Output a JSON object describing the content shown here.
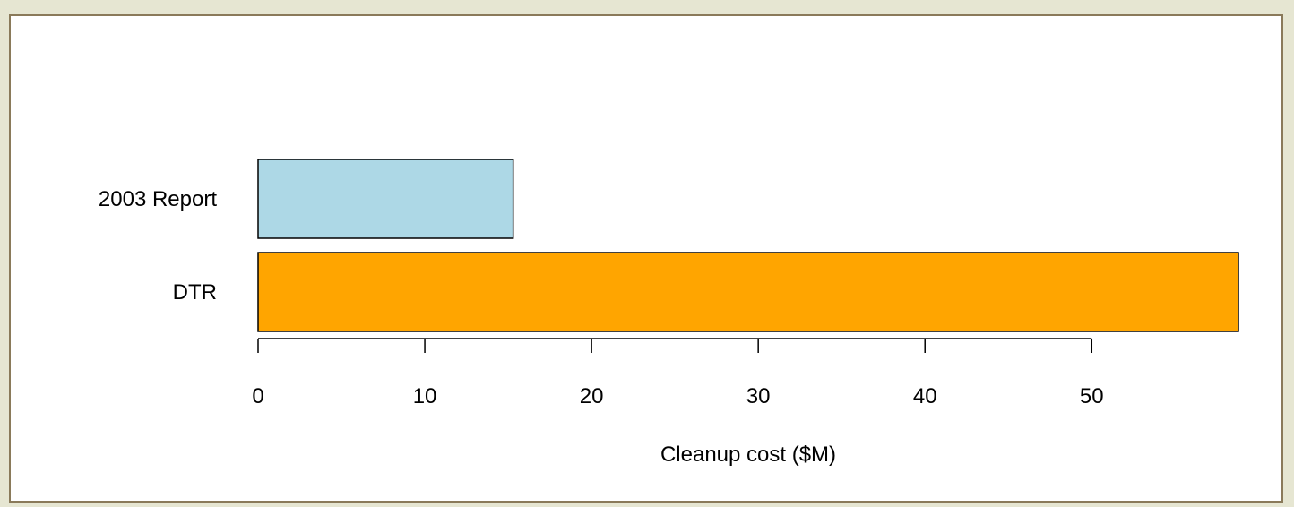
{
  "chart_data": {
    "type": "bar",
    "orientation": "horizontal",
    "categories": [
      "2003 Report",
      "DTR"
    ],
    "values": [
      15.3,
      58.8
    ],
    "colors": [
      "#add8e6",
      "#ffa500"
    ],
    "title": "",
    "xlabel": "Cleanup cost ($M)",
    "ylabel": "",
    "xlim": [
      0,
      58.8
    ],
    "xticks": [
      0,
      10,
      20,
      30,
      40,
      50
    ],
    "grid": false,
    "legend": "none"
  }
}
